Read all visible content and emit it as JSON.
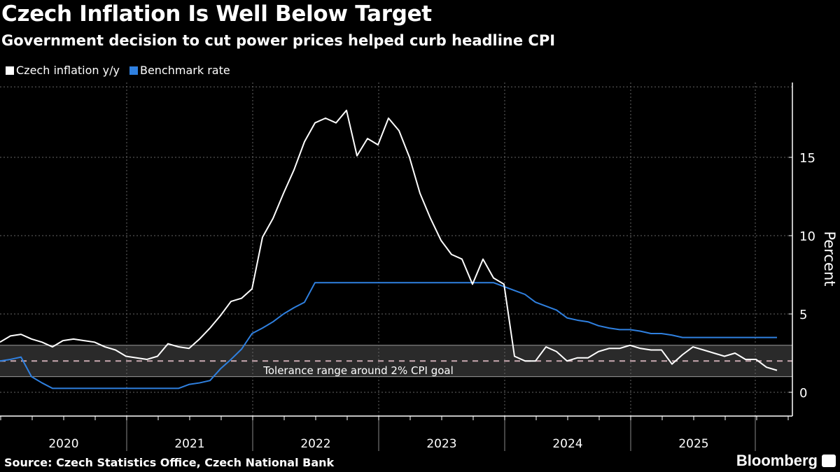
{
  "title": "Czech Inflation Is Well Below Target",
  "subtitle": "Government decision to cut power prices helped curb headline CPI",
  "source": "Source: Czech Statistics Office, Czech National Bank",
  "brand": "Bloomberg",
  "chart_data": {
    "type": "line",
    "ylabel": "Percent",
    "ylim": [
      -1.5,
      19.5
    ],
    "yticks": [
      0,
      5,
      10,
      15
    ],
    "ytick_labels": [
      "0",
      "5",
      "10",
      "15"
    ],
    "xtick_labels": [
      "2020",
      "2021",
      "2022",
      "2023",
      "2024",
      "2025"
    ],
    "x_start": "2019-12",
    "x_end": "2026-02",
    "grid": true,
    "legend": "top-left",
    "band": {
      "from": 1,
      "to": 3,
      "line": 2,
      "label": "Tolerance range around 2% CPI goal",
      "fill": "#2a2a2a",
      "line_color": "#c9a9b1"
    },
    "series": [
      {
        "name": "Czech inflation y/y",
        "color": "#ffffff",
        "values": [
          3.2,
          3.6,
          3.7,
          3.4,
          3.2,
          2.9,
          3.3,
          3.4,
          3.3,
          3.2,
          2.9,
          2.7,
          2.3,
          2.2,
          2.1,
          2.3,
          3.1,
          2.9,
          2.8,
          3.4,
          4.1,
          4.9,
          5.8,
          6.0,
          6.6,
          9.9,
          11.1,
          12.7,
          14.2,
          16.0,
          17.2,
          17.5,
          17.2,
          18.0,
          15.1,
          16.2,
          15.8,
          17.5,
          16.7,
          15.0,
          12.7,
          11.1,
          9.7,
          8.8,
          8.5,
          6.9,
          8.5,
          7.3,
          6.9,
          2.3,
          2.0,
          2.0,
          2.9,
          2.6,
          2.0,
          2.2,
          2.2,
          2.6,
          2.8,
          2.8,
          3.0,
          2.8,
          2.7,
          2.7,
          1.8,
          2.4,
          2.9,
          2.7,
          2.5,
          2.3,
          2.5,
          2.1,
          2.1,
          1.6,
          1.4
        ]
      },
      {
        "name": "Benchmark rate",
        "color": "#2f80e0",
        "values": [
          2.0,
          2.1,
          2.25,
          1.0,
          0.6,
          0.25,
          0.25,
          0.25,
          0.25,
          0.25,
          0.25,
          0.25,
          0.25,
          0.25,
          0.25,
          0.25,
          0.25,
          0.25,
          0.5,
          0.6,
          0.75,
          1.5,
          2.1,
          2.75,
          3.75,
          4.1,
          4.5,
          5.0,
          5.4,
          5.75,
          7.0,
          7.0,
          7.0,
          7.0,
          7.0,
          7.0,
          7.0,
          7.0,
          7.0,
          7.0,
          7.0,
          7.0,
          7.0,
          7.0,
          7.0,
          7.0,
          7.0,
          7.0,
          6.75,
          6.5,
          6.25,
          5.75,
          5.5,
          5.25,
          4.75,
          4.6,
          4.5,
          4.25,
          4.1,
          4.0,
          4.0,
          3.9,
          3.75,
          3.75,
          3.65,
          3.5,
          3.5,
          3.5,
          3.5,
          3.5,
          3.5,
          3.5,
          3.5,
          3.5,
          3.5
        ]
      }
    ]
  }
}
